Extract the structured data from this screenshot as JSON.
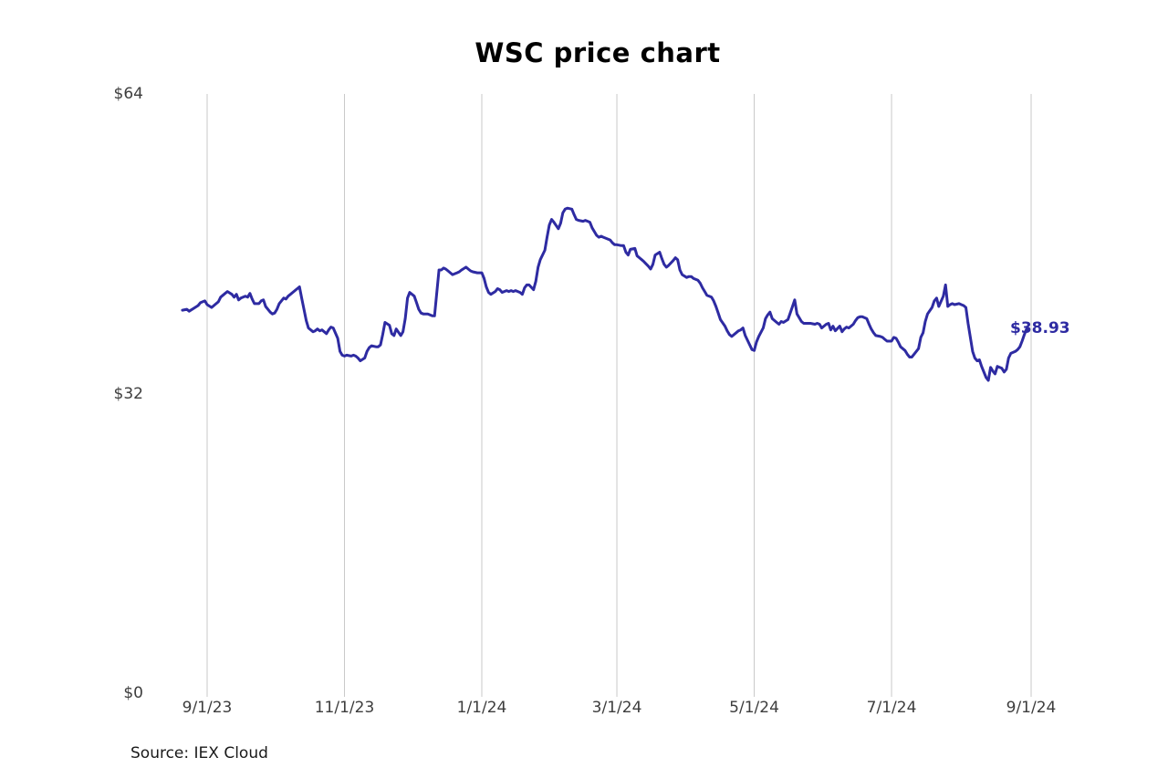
{
  "header": {
    "title": "WSC price chart"
  },
  "footer": {
    "source_note": "Source: IEX Cloud"
  },
  "chart_data": {
    "type": "line",
    "title": "WSC price chart",
    "series_name": "WSC price",
    "unit": "USD",
    "end_label": "$38.93",
    "last_price": 38.93,
    "line_color": "#2e2ba2",
    "grid_color": "#c9c9c9",
    "tick_label_color": "#3d3d3d",
    "x_axis": {
      "day_zero_date": "9/1/23",
      "ticks": [
        {
          "label": "9/1/23",
          "day": 0
        },
        {
          "label": "11/1/23",
          "day": 61
        },
        {
          "label": "1/1/24",
          "day": 122
        },
        {
          "label": "3/1/24",
          "day": 182
        },
        {
          "label": "5/1/24",
          "day": 243
        },
        {
          "label": "7/1/24",
          "day": 304
        },
        {
          "label": "9/1/24",
          "day": 366
        }
      ],
      "gridlines": true
    },
    "y_axis": {
      "range": [
        0,
        64
      ],
      "ticks": [
        {
          "label": "$0",
          "value": 0
        },
        {
          "label": "$32",
          "value": 32
        },
        {
          "label": "$64",
          "value": 64
        }
      ],
      "gridlines": false
    },
    "days": [
      -11,
      -9,
      -8,
      -6,
      -4,
      -3,
      -1,
      0,
      2,
      3,
      5,
      6,
      8,
      9,
      11,
      12,
      13,
      14,
      15,
      17,
      18,
      19,
      20,
      21,
      23,
      24,
      25,
      26,
      28,
      29,
      30,
      31,
      32,
      34,
      35,
      36,
      37,
      39,
      41,
      42,
      43,
      44,
      45,
      47,
      48,
      49,
      50,
      51,
      53,
      54,
      55,
      56,
      58,
      59,
      60,
      61,
      62,
      64,
      65,
      66,
      67,
      68,
      70,
      71,
      72,
      73,
      75,
      76,
      77,
      78,
      79,
      81,
      82,
      83,
      84,
      86,
      87,
      88,
      89,
      90,
      92,
      93,
      94,
      95,
      96,
      98,
      99,
      100,
      101,
      103,
      104,
      105,
      106,
      107,
      109,
      110,
      111,
      112,
      113,
      115,
      116,
      117,
      118,
      120,
      122,
      123,
      124,
      125,
      126,
      128,
      129,
      130,
      131,
      133,
      134,
      135,
      136,
      137,
      139,
      140,
      141,
      142,
      143,
      145,
      146,
      147,
      148,
      150,
      151,
      152,
      153,
      154,
      156,
      157,
      158,
      159,
      160,
      162,
      163,
      164,
      165,
      167,
      168,
      169,
      170,
      171,
      173,
      174,
      175,
      176,
      177,
      179,
      180,
      181,
      182,
      184,
      185,
      186,
      187,
      188,
      190,
      191,
      192,
      193,
      194,
      196,
      197,
      198,
      199,
      201,
      202,
      203,
      204,
      205,
      207,
      208,
      209,
      210,
      211,
      213,
      214,
      215,
      216,
      218,
      219,
      220,
      221,
      222,
      224,
      225,
      226,
      227,
      228,
      230,
      231,
      232,
      233,
      235,
      236,
      237,
      238,
      239,
      241,
      242,
      243,
      244,
      245,
      247,
      248,
      249,
      250,
      251,
      253,
      254,
      255,
      256,
      258,
      259,
      260,
      261,
      262,
      264,
      265,
      266,
      267,
      268,
      270,
      271,
      272,
      273,
      275,
      276,
      277,
      278,
      279,
      281,
      282,
      283,
      284,
      285,
      287,
      288,
      289,
      290,
      291,
      293,
      294,
      295,
      296,
      297,
      299,
      300,
      301,
      302,
      304,
      305,
      306,
      307,
      308,
      310,
      311,
      312,
      313,
      314,
      316,
      317,
      318,
      319,
      320,
      322,
      323,
      324,
      325,
      327,
      328,
      329,
      330,
      331,
      332,
      334,
      335,
      336,
      337,
      338,
      340,
      341,
      342,
      343,
      344,
      346,
      347,
      348,
      349,
      350,
      351,
      353,
      354,
      355,
      356,
      357,
      359,
      360,
      361,
      362,
      363,
      364
    ],
    "prices": [
      40.9,
      41.0,
      40.8,
      41.1,
      41.4,
      41.7,
      41.9,
      41.5,
      41.2,
      41.4,
      41.8,
      42.3,
      42.7,
      42.9,
      42.6,
      42.3,
      42.6,
      42.0,
      42.2,
      42.4,
      42.3,
      42.7,
      42.1,
      41.6,
      41.6,
      41.9,
      42.0,
      41.3,
      40.7,
      40.5,
      40.6,
      41.0,
      41.6,
      42.2,
      42.1,
      42.4,
      42.6,
      43.0,
      43.4,
      42.2,
      41.0,
      39.8,
      39.0,
      38.6,
      38.7,
      38.9,
      38.7,
      38.8,
      38.4,
      38.8,
      39.1,
      39.0,
      37.9,
      36.5,
      36.1,
      36.0,
      36.1,
      36.0,
      36.1,
      36.0,
      35.8,
      35.5,
      35.8,
      36.5,
      36.9,
      37.1,
      37.0,
      37.0,
      37.2,
      38.3,
      39.6,
      39.3,
      38.4,
      38.2,
      38.9,
      38.2,
      38.6,
      40.0,
      42.2,
      42.8,
      42.4,
      41.7,
      41.0,
      40.6,
      40.5,
      40.5,
      40.4,
      40.3,
      40.3,
      45.2,
      45.2,
      45.4,
      45.3,
      45.1,
      44.7,
      44.8,
      44.9,
      45.0,
      45.2,
      45.5,
      45.3,
      45.1,
      45.0,
      44.9,
      44.9,
      44.3,
      43.4,
      42.8,
      42.6,
      42.9,
      43.2,
      43.1,
      42.8,
      43.0,
      42.9,
      43.0,
      42.9,
      43.0,
      42.8,
      42.6,
      43.3,
      43.6,
      43.6,
      43.1,
      44.0,
      45.5,
      46.3,
      47.3,
      48.7,
      50.0,
      50.6,
      50.3,
      49.6,
      50.2,
      51.3,
      51.7,
      51.8,
      51.7,
      51.1,
      50.6,
      50.5,
      50.4,
      50.5,
      50.4,
      50.3,
      49.7,
      48.9,
      48.7,
      48.8,
      48.7,
      48.6,
      48.4,
      48.1,
      47.9,
      47.9,
      47.8,
      47.8,
      47.1,
      46.8,
      47.4,
      47.5,
      46.7,
      46.5,
      46.3,
      46.1,
      45.6,
      45.3,
      45.8,
      46.8,
      47.1,
      46.4,
      45.8,
      45.5,
      45.7,
      46.2,
      46.5,
      46.3,
      45.2,
      44.7,
      44.4,
      44.5,
      44.5,
      44.3,
      44.1,
      43.8,
      43.3,
      42.9,
      42.5,
      42.3,
      41.9,
      41.3,
      40.6,
      39.9,
      39.2,
      38.7,
      38.3,
      38.1,
      38.5,
      38.7,
      38.8,
      39.0,
      38.2,
      37.2,
      36.7,
      36.6,
      37.5,
      38.1,
      39.0,
      40.0,
      40.4,
      40.7,
      40.0,
      39.6,
      39.4,
      39.7,
      39.6,
      39.9,
      40.6,
      41.3,
      42.0,
      40.5,
      39.7,
      39.5,
      39.5,
      39.5,
      39.5,
      39.4,
      39.5,
      39.4,
      39.0,
      39.4,
      39.5,
      38.8,
      39.2,
      38.7,
      39.2,
      38.6,
      38.9,
      39.1,
      39.0,
      39.4,
      39.8,
      40.1,
      40.2,
      40.2,
      40.0,
      39.4,
      38.9,
      38.5,
      38.2,
      38.1,
      38.0,
      37.8,
      37.6,
      37.6,
      38.0,
      37.9,
      37.5,
      37.0,
      36.6,
      36.2,
      35.9,
      35.9,
      36.2,
      36.8,
      38.0,
      38.5,
      39.7,
      40.5,
      41.2,
      41.9,
      42.2,
      41.3,
      42.4,
      43.6,
      41.3,
      41.5,
      41.6,
      41.5,
      41.6,
      41.5,
      41.4,
      41.2,
      39.5,
      36.5,
      35.8,
      35.5,
      35.6,
      34.9,
      33.7,
      33.4,
      34.8,
      34.4,
      34.1,
      34.9,
      34.7,
      34.3,
      34.6,
      35.8,
      36.3,
      36.5,
      36.7,
      37.0,
      37.6,
      38.3,
      38.93
    ]
  }
}
